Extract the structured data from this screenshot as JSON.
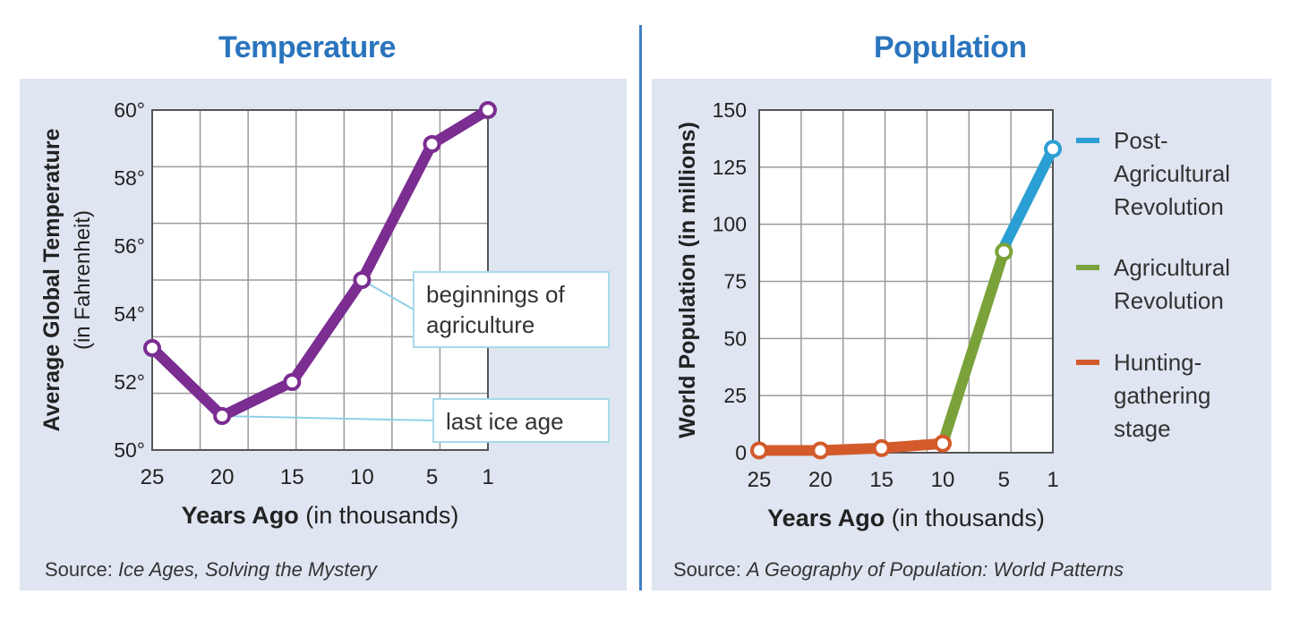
{
  "chart_data": [
    {
      "type": "line",
      "title": "Temperature",
      "xlabel_bold": "Years Ago",
      "xlabel_rest": "(in thousands)",
      "ylabel_line1": "Average Global Temperature",
      "ylabel_line2": "(in Fahrenheit)",
      "x_ticks": [
        "25",
        "20",
        "15",
        "10",
        "5",
        "1"
      ],
      "y_ticks": [
        "50°",
        "52°",
        "54°",
        "56°",
        "58°",
        "60°"
      ],
      "x": [
        25,
        20,
        15,
        10,
        5,
        1
      ],
      "values": [
        53,
        51,
        52,
        55,
        59,
        60
      ],
      "ylim": [
        50,
        60
      ],
      "grid": true,
      "line_color": "#7b2d92",
      "annotations": [
        {
          "text_lines": [
            "beginnings of",
            "agriculture"
          ],
          "x": 10,
          "y": 55
        },
        {
          "text_lines": [
            "last ice age"
          ],
          "x": 20,
          "y": 51
        }
      ],
      "source_prefix": "Source: ",
      "source_title": "Ice Ages, Solving the Mystery"
    },
    {
      "type": "line",
      "title": "Population",
      "xlabel_bold": "Years Ago",
      "xlabel_rest": "(in thousands)",
      "ylabel": "World Population (in millions)",
      "x_ticks": [
        "25",
        "20",
        "15",
        "10",
        "5",
        "1"
      ],
      "y_ticks": [
        "0",
        "25",
        "50",
        "75",
        "100",
        "125",
        "150"
      ],
      "ylim": [
        0,
        150
      ],
      "grid": true,
      "series": [
        {
          "name": "Hunting-gathering stage",
          "legend_lines": [
            "Hunting-",
            "gathering",
            "stage"
          ],
          "color": "#d35a2a",
          "x": [
            25,
            20,
            15,
            10
          ],
          "values": [
            1,
            1,
            2,
            4
          ]
        },
        {
          "name": "Agricultural Revolution",
          "legend_lines": [
            "Agricultural",
            "Revolution"
          ],
          "color": "#7aa23a",
          "x": [
            10,
            5
          ],
          "values": [
            4,
            88
          ]
        },
        {
          "name": "Post-Agricultural Revolution",
          "legend_lines": [
            "Post-",
            "Agricultural",
            "Revolution"
          ],
          "color": "#2b9ed3",
          "x": [
            5,
            1
          ],
          "values": [
            90,
            133
          ]
        }
      ],
      "markers": [
        {
          "x": 25,
          "y": 1
        },
        {
          "x": 20,
          "y": 1
        },
        {
          "x": 15,
          "y": 2
        },
        {
          "x": 10,
          "y": 4
        },
        {
          "x": 5,
          "y": 88
        },
        {
          "x": 1,
          "y": 133
        }
      ],
      "source_prefix": "Source: ",
      "source_title": "A Geography of Population: World Patterns"
    }
  ]
}
